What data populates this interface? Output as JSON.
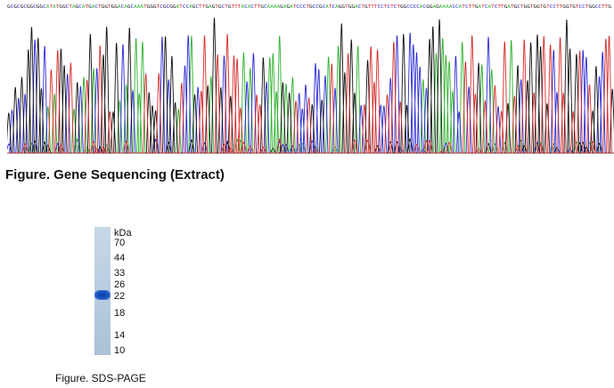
{
  "sequence_text": "GCGCGCGGCGGCATATGGCTAGCATGACTGGTGGACAGCAAATGGGTCGCGGATCCAGCTTGAGTGCTGTTTACACTTGCAAAAGAGATCCCTGCCGCATCAGGTGGACTGTTTCCTCTCTGGCCCCACGGAGAAAACCATCTTGATCATCTTGATGCTGGTGGTGTCCTTGGTGTCCTGGCCTTG",
  "base_colors": {
    "A": "#2db12d",
    "C": "#2a2ad6",
    "G": "#111111",
    "T": "#d62a2a"
  },
  "figure1_caption": "Figure. Gene Sequencing (Extract)",
  "gel": {
    "unit_label": "kDa",
    "markers": [
      "70",
      "44",
      "33",
      "26",
      "22",
      "18",
      "14",
      "10"
    ],
    "band_color": "#1a4fb8"
  },
  "figure2_caption": "Figure. SDS-PAGE"
}
